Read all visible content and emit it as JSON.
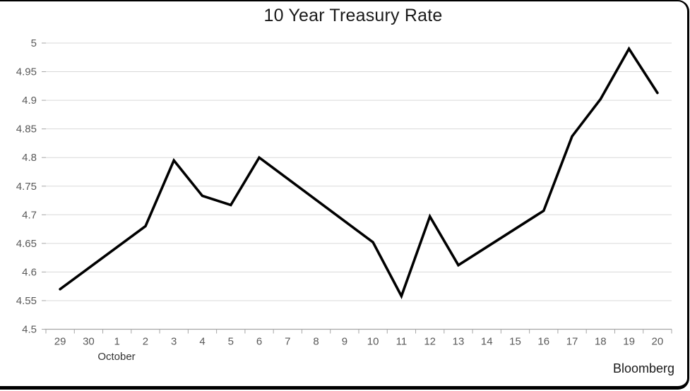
{
  "colors": {
    "background": "#ffffff",
    "border": "#000000",
    "gridline": "#d9d9d9",
    "axis": "#a6a6a6",
    "tick_label": "#595959",
    "title_text": "#1a1a1a",
    "series_line": "#000000",
    "annotation_text": "#1a1a1a"
  },
  "chart_data": {
    "type": "line",
    "title": "10 Year Treasury Rate",
    "source": "Bloomberg",
    "x_group_label": "October",
    "xlabel": "",
    "ylabel": "",
    "ylim": [
      4.5,
      5.0
    ],
    "ytick_step": 0.05,
    "grid": true,
    "legend": "none",
    "categories": [
      "29",
      "30",
      "1",
      "2",
      "3",
      "4",
      "5",
      "6",
      "7",
      "8",
      "9",
      "10",
      "11",
      "12",
      "13",
      "14",
      "15",
      "16",
      "17",
      "18",
      "19",
      "20"
    ],
    "yticks": [
      {
        "value": 4.5,
        "label": "4.5"
      },
      {
        "value": 4.55,
        "label": "4.55"
      },
      {
        "value": 4.6,
        "label": "4.6"
      },
      {
        "value": 4.65,
        "label": "4.65"
      },
      {
        "value": 4.7,
        "label": "4.7"
      },
      {
        "value": 4.75,
        "label": "4.75"
      },
      {
        "value": 4.8,
        "label": "4.8"
      },
      {
        "value": 4.85,
        "label": "4.85"
      },
      {
        "value": 4.9,
        "label": "4.9"
      },
      {
        "value": 4.95,
        "label": "4.95"
      },
      {
        "value": 5.0,
        "label": "5"
      }
    ],
    "series": [
      {
        "name": "10 Year Treasury Rate",
        "values": [
          4.57,
          null,
          null,
          4.68,
          4.795,
          4.733,
          4.717,
          4.8,
          null,
          null,
          null,
          4.652,
          4.558,
          4.697,
          4.612,
          null,
          null,
          4.707,
          4.837,
          4.902,
          4.99,
          4.913
        ]
      }
    ]
  }
}
